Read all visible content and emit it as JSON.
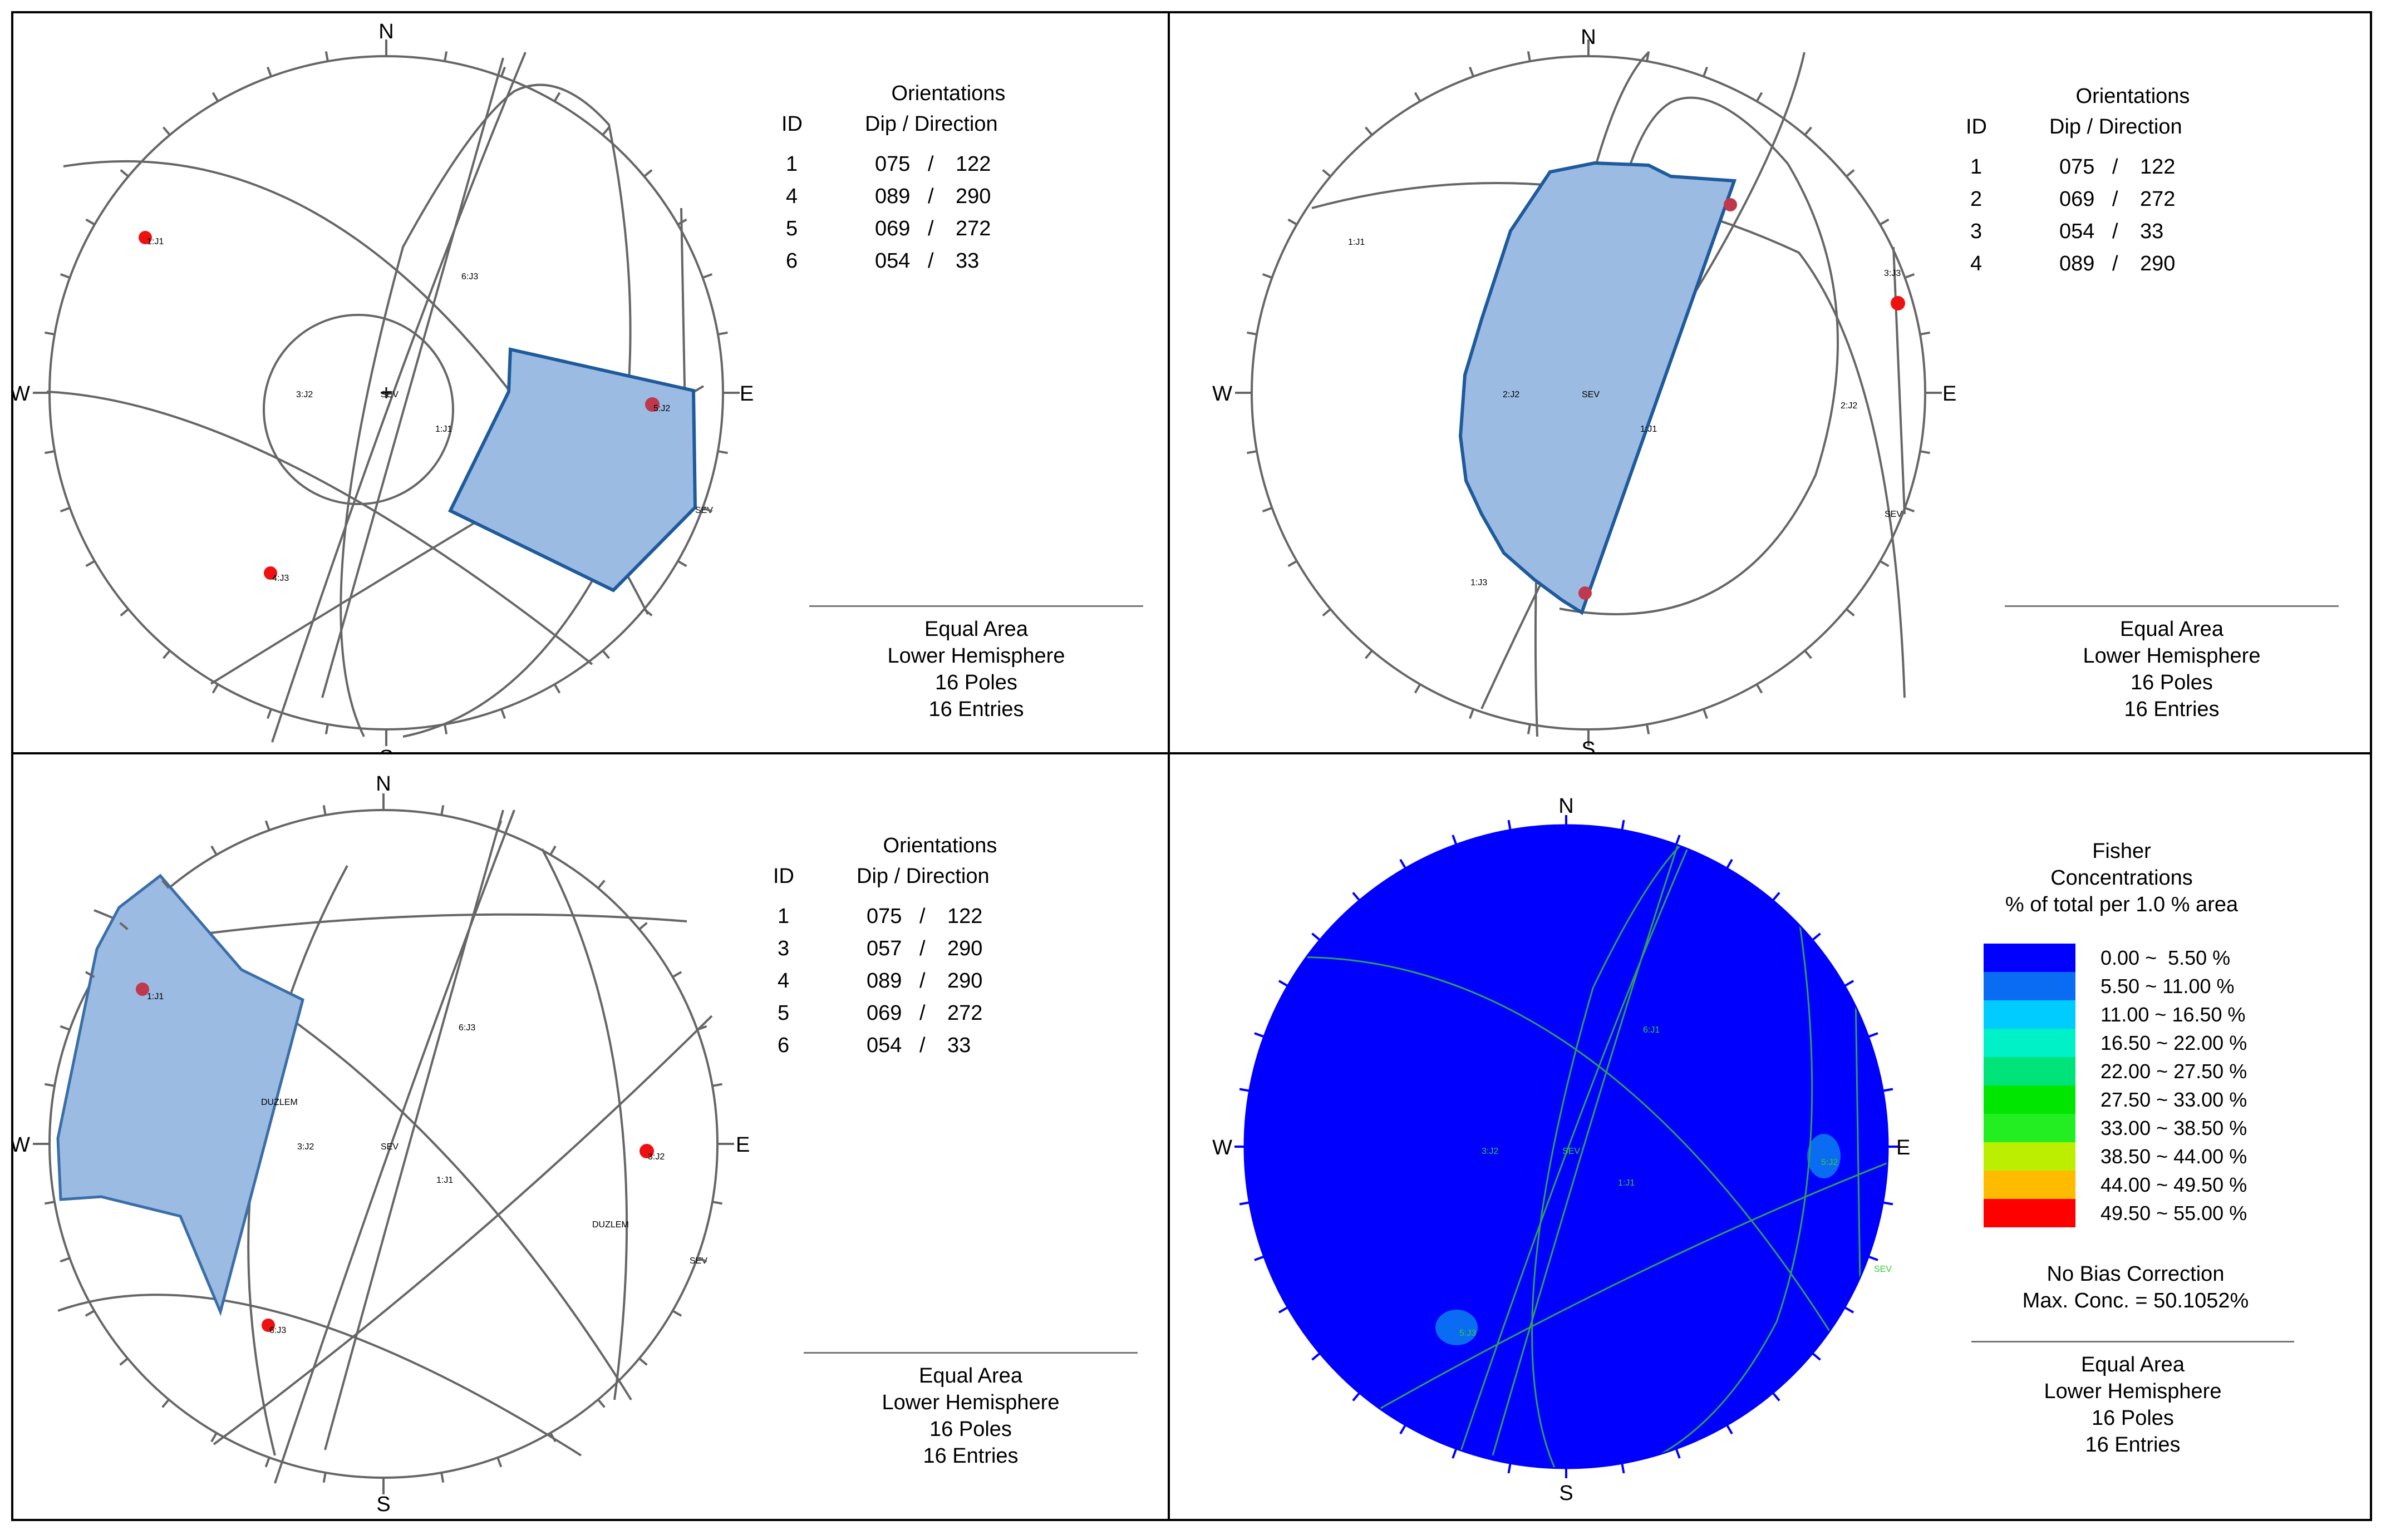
{
  "compass": {
    "n": "N",
    "s": "S",
    "e": "E",
    "w": "W"
  },
  "info": {
    "orient_title": "Orientations",
    "id_header": "ID",
    "dip_header": "Dip / Direction",
    "footer": [
      "Equal Area",
      "Lower Hemisphere",
      "16 Poles",
      "16 Entries"
    ]
  },
  "panels": [
    {
      "rows": [
        [
          "1",
          "075",
          "/",
          "122"
        ],
        [
          "4",
          "089",
          "/",
          "290"
        ],
        [
          "5",
          "069",
          "/",
          "272"
        ],
        [
          "6",
          "054",
          "/",
          "33"
        ]
      ],
      "point_labels": [
        "1:J1",
        "4:J3",
        "6:J3",
        "5:J2",
        "SEV",
        "1:J1",
        "3:J2",
        "SEV"
      ]
    },
    {
      "rows": [
        [
          "1",
          "075",
          "/",
          "122"
        ],
        [
          "2",
          "069",
          "/",
          "272"
        ],
        [
          "3",
          "054",
          "/",
          "33"
        ],
        [
          "4",
          "089",
          "/",
          "290"
        ]
      ],
      "point_labels": [
        "1:J1",
        "3:J3",
        "2:J2",
        "SEV",
        "1:J1",
        "1:J3",
        "2:J2",
        "SEV"
      ]
    },
    {
      "rows": [
        [
          "1",
          "075",
          "/",
          "122"
        ],
        [
          "3",
          "057",
          "/",
          "290"
        ],
        [
          "4",
          "089",
          "/",
          "290"
        ],
        [
          "5",
          "069",
          "/",
          "272"
        ],
        [
          "6",
          "054",
          "/",
          "33"
        ]
      ],
      "point_labels": [
        "1:J1",
        "6:J3",
        "DUZLEM",
        "3:J2",
        "SEV",
        "1:J1",
        "3:J2",
        "DUZLEM",
        "SEV",
        "6:J3"
      ]
    },
    {
      "legend_title": [
        "Fisher",
        "Concentrations",
        "% of total per 1.0 % area"
      ],
      "levels": [
        {
          "label": "0.00 ~  5.50 %",
          "color": "#0000ff"
        },
        {
          "label": "5.50 ~ 11.00 %",
          "color": "#0a6cf2"
        },
        {
          "label": "11.00 ~ 16.50 %",
          "color": "#00ccff"
        },
        {
          "label": "16.50 ~ 22.00 %",
          "color": "#00f0c8"
        },
        {
          "label": "22.00 ~ 27.50 %",
          "color": "#00e37a"
        },
        {
          "label": "27.50 ~ 33.00 %",
          "color": "#00e600"
        },
        {
          "label": "33.00 ~ 38.50 %",
          "color": "#22ee22"
        },
        {
          "label": "38.50 ~ 44.00 %",
          "color": "#bbee00"
        },
        {
          "label": "44.00 ~ 49.50 %",
          "color": "#ffbb00"
        },
        {
          "label": "49.50 ~ 55.00 %",
          "color": "#ff0000"
        }
      ],
      "bias": "No Bias Correction",
      "max_conc": "Max. Conc. = 50.1052%",
      "point_labels": [
        "5:J3",
        "5:J2",
        "SEV",
        "1:J1",
        "3:J2",
        "6:J1",
        "SEV"
      ]
    }
  ],
  "colors": {
    "window_fill": "#9bbbe2",
    "window_edge": "#1e5a9c",
    "pole": "#ee1111",
    "net_blue": "#0000ff",
    "contour_line": "#2e9e5e"
  }
}
